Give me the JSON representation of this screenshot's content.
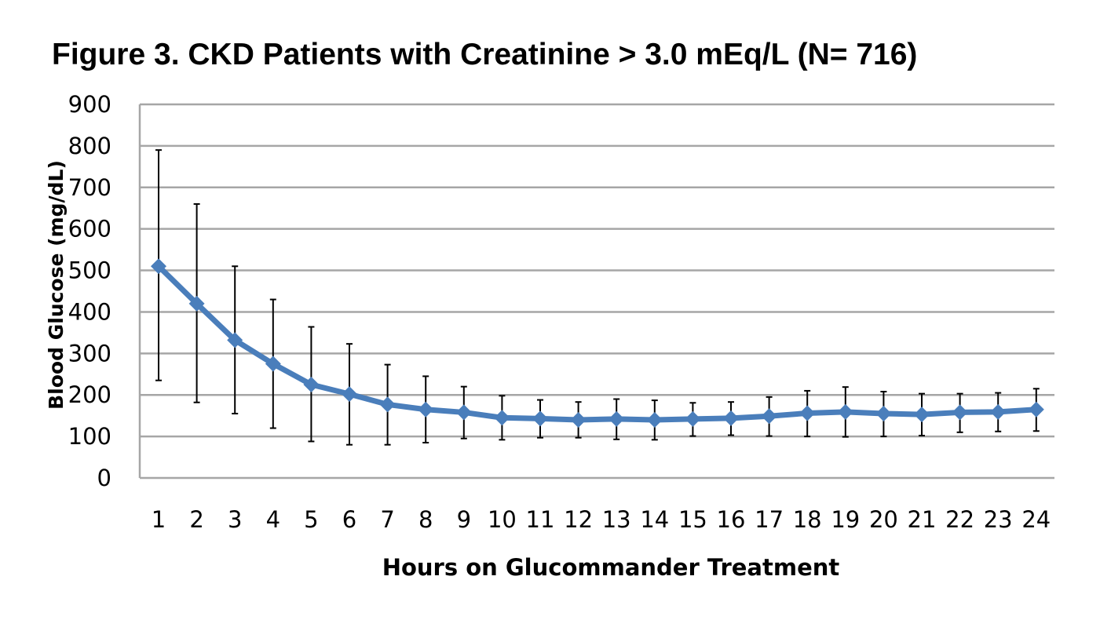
{
  "chart_data": {
    "type": "line",
    "title": "Figure 3. CKD Patients with Creatinine > 3.0 mEq/L (N= 716)",
    "xlabel": "Hours on Glucommander Treatment",
    "ylabel": "Blood Glucose (mg/dL)",
    "ylim": [
      0,
      900
    ],
    "yticks": [
      0,
      100,
      200,
      300,
      400,
      500,
      600,
      700,
      800,
      900
    ],
    "grid": true,
    "legend": "none",
    "color": "#4A7EBB",
    "categories": [
      "1",
      "2",
      "3",
      "4",
      "5",
      "6",
      "7",
      "8",
      "9",
      "10",
      "11",
      "12",
      "13",
      "14",
      "15",
      "16",
      "17",
      "18",
      "19",
      "20",
      "21",
      "22",
      "23",
      "24"
    ],
    "series": [
      {
        "values": [
          510,
          420,
          332,
          275,
          225,
          202,
          177,
          165,
          158,
          145,
          143,
          140,
          142,
          140,
          142,
          144,
          149,
          156,
          159,
          155,
          153,
          158,
          159,
          165
        ],
        "error_upper": [
          790,
          660,
          510,
          430,
          364,
          323,
          273,
          245,
          220,
          198,
          188,
          183,
          190,
          187,
          181,
          183,
          195,
          210,
          219,
          208,
          203,
          203,
          205,
          215
        ],
        "error_lower": [
          235,
          182,
          155,
          120,
          88,
          80,
          80,
          85,
          95,
          92,
          97,
          97,
          93,
          92,
          101,
          103,
          101,
          100,
          99,
          100,
          102,
          110,
          112,
          113
        ]
      }
    ]
  }
}
